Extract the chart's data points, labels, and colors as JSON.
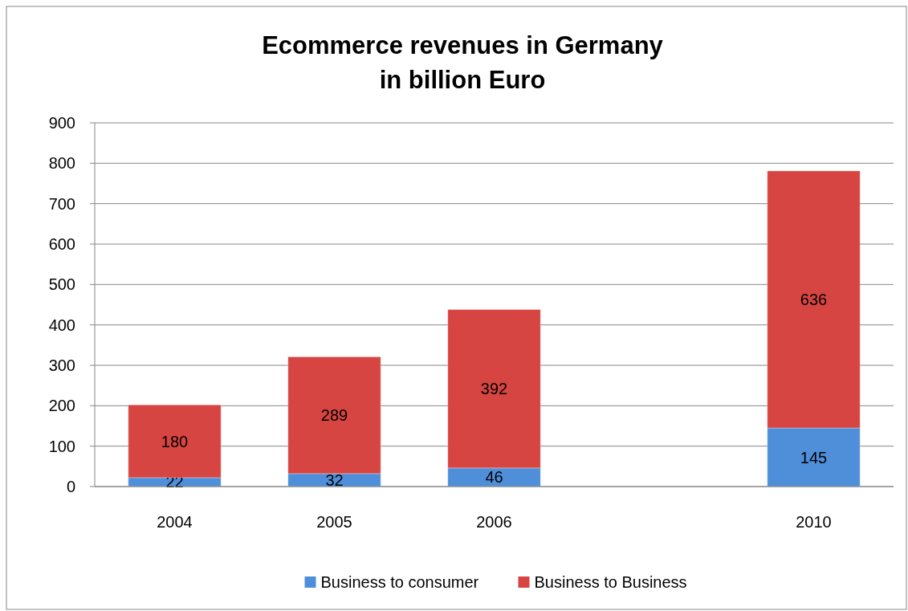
{
  "chart_data": {
    "type": "bar",
    "title": "Ecommerce revenues in Germany\nin billion Euro",
    "categories": [
      "2004",
      "2005",
      "2006",
      null,
      "2010"
    ],
    "stacked": true,
    "data_labels": true,
    "series": [
      {
        "name": "Business to consumer",
        "color": "#4f8fd9",
        "values": [
          22,
          32,
          46,
          null,
          145
        ]
      },
      {
        "name": "Business to Business",
        "color": "#d64541",
        "values": [
          180,
          289,
          392,
          null,
          636
        ]
      }
    ],
    "ylim": [
      0,
      900
    ],
    "yticks": [
      0,
      100,
      200,
      300,
      400,
      500,
      600,
      700,
      800,
      900
    ],
    "grid": "y",
    "legend": "bottom"
  }
}
